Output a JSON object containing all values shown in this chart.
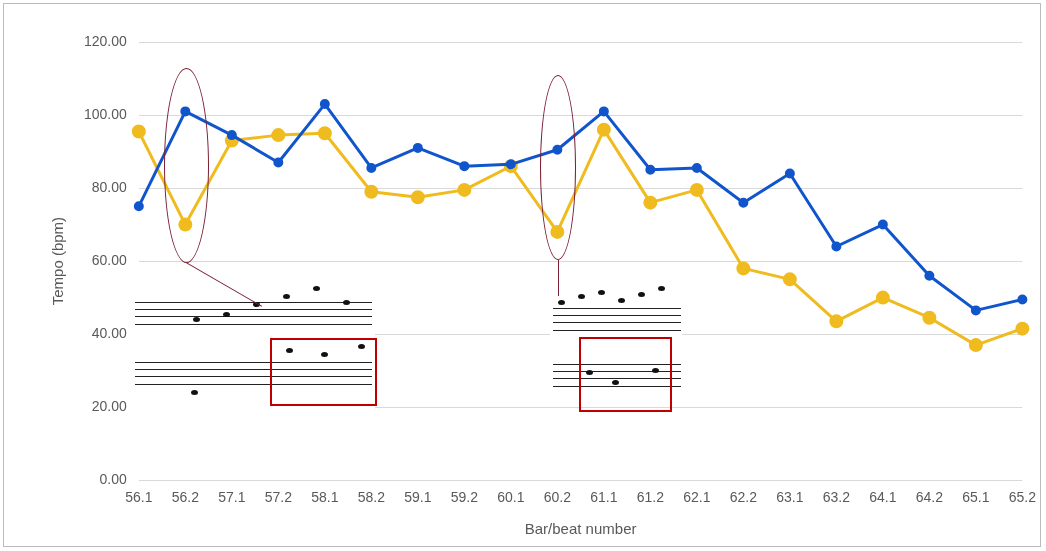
{
  "chart_data": {
    "type": "line",
    "xlabel": "Bar/beat number",
    "ylabel": "Tempo (bpm)",
    "categories": [
      "56.1",
      "56.2",
      "57.1",
      "57.2",
      "58.1",
      "58.2",
      "59.1",
      "59.2",
      "60.1",
      "60.2",
      "61.1",
      "61.2",
      "62.1",
      "62.2",
      "63.1",
      "63.2",
      "64.1",
      "64.2",
      "65.1",
      "65.2"
    ],
    "series": [
      {
        "color": "#1155cc",
        "values": [
          75,
          101,
          94.5,
          87,
          103,
          85.5,
          91,
          86,
          86.5,
          90.5,
          101,
          85,
          85.5,
          76,
          84,
          64,
          70,
          56,
          46.5,
          49.5
        ]
      },
      {
        "color": "#f0bb1e",
        "values": [
          95.5,
          70,
          93,
          94.5,
          95,
          79,
          77.5,
          79.5,
          86,
          68,
          96,
          76,
          79.5,
          58,
          55,
          43.5,
          50,
          44.5,
          37,
          41.5
        ]
      }
    ],
    "ylim": [
      0,
      120
    ],
    "yticks": [
      {
        "value": 0,
        "label": "0.00"
      },
      {
        "value": 20,
        "label": "20.00"
      },
      {
        "value": 40,
        "label": "40.00"
      },
      {
        "value": 60,
        "label": "60.00"
      },
      {
        "value": 80,
        "label": "80.00"
      },
      {
        "value": 100,
        "label": "100.00"
      },
      {
        "value": 120,
        "label": "120.00"
      }
    ],
    "grid": "y",
    "legend": false,
    "marker": "circle",
    "line_style": "solid"
  }
}
